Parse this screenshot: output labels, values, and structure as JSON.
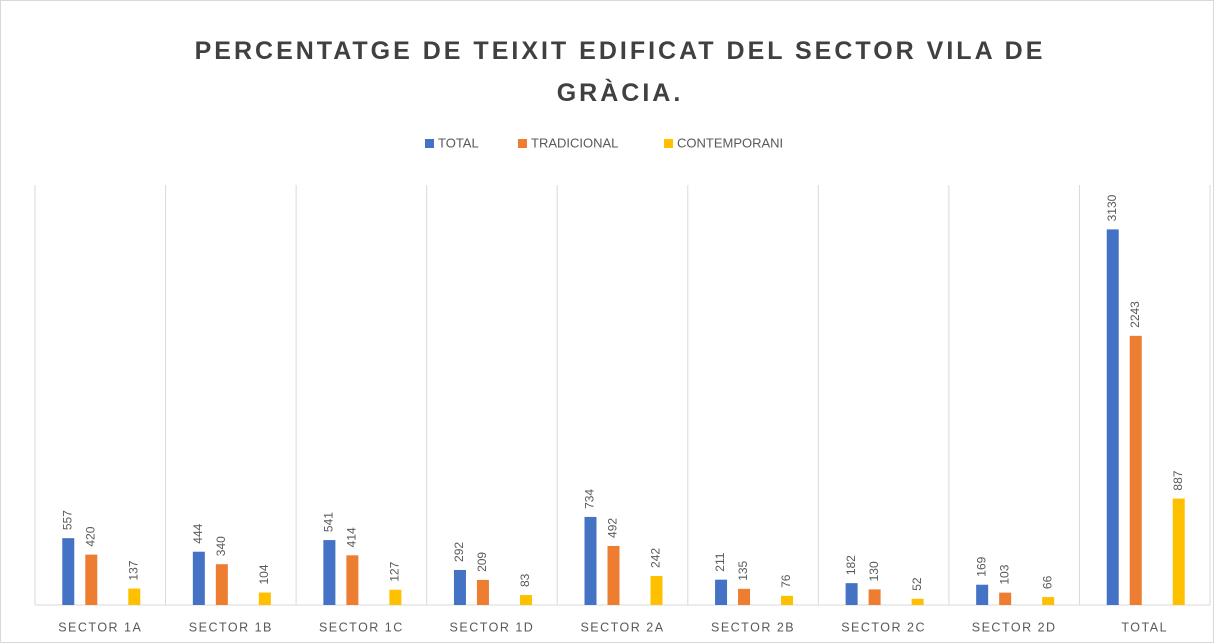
{
  "chart_data": {
    "type": "bar",
    "title": "PERCENTATGE DE TEIXIT EDIFICAT DEL SECTOR VILA DE GRÀCIA.",
    "categories": [
      "SECTOR 1A",
      "SECTOR 1B",
      "SECTOR 1C",
      "SECTOR 1D",
      "SECTOR 2A",
      "SECTOR 2B",
      "SECTOR 2C",
      "SECTOR 2D",
      "TOTAL"
    ],
    "series": [
      {
        "name": "TOTAL",
        "color": "#4472c4",
        "values": [
          557,
          444,
          541,
          292,
          734,
          211,
          182,
          169,
          3130
        ]
      },
      {
        "name": "TRADICIONAL",
        "color": "#ed7d31",
        "values": [
          420,
          340,
          414,
          209,
          492,
          135,
          130,
          103,
          2243
        ]
      },
      {
        "name": "CONTEMPORANI",
        "color": "#ffc000",
        "values": [
          137,
          104,
          127,
          83,
          242,
          76,
          52,
          66,
          887
        ]
      }
    ],
    "ylim": [
      0,
      3500
    ],
    "legend": "top"
  }
}
